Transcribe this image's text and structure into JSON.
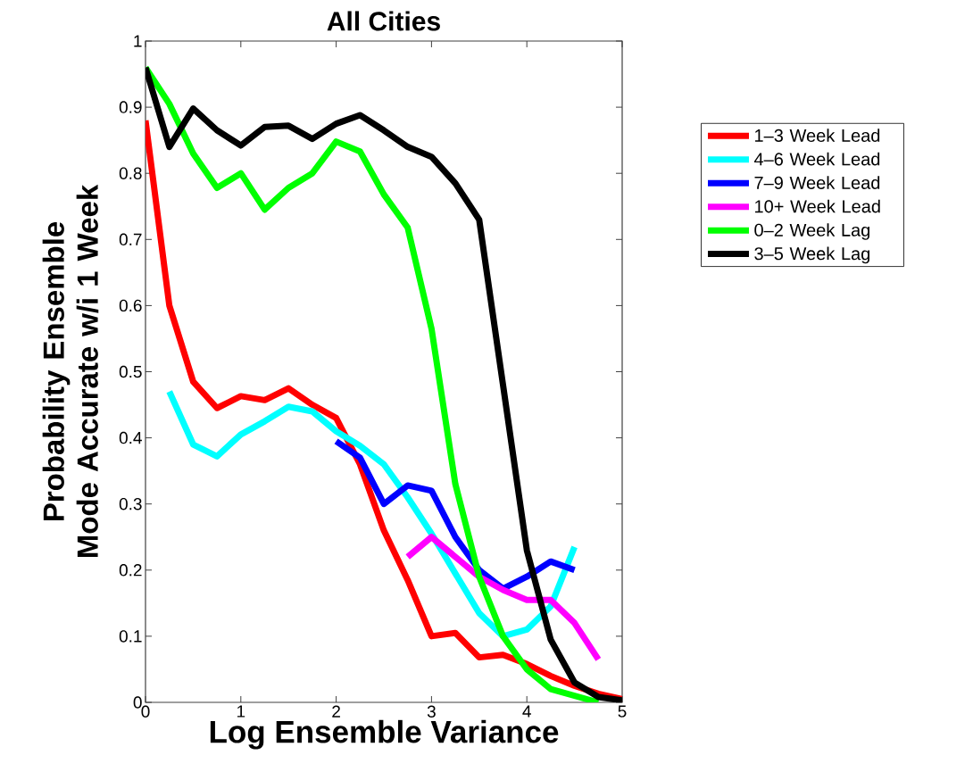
{
  "chart_data": {
    "type": "line",
    "title": "All Cities",
    "xlabel": "Log Ensemble Variance",
    "ylabel": "Probability Ensemble Mode Accurate w/i 1 Week",
    "xlim": [
      0,
      5
    ],
    "ylim": [
      0,
      1
    ],
    "xticks": [
      0,
      1,
      2,
      3,
      4,
      5
    ],
    "yticks": [
      0,
      0.1,
      0.2,
      0.3,
      0.4,
      0.5,
      0.6,
      0.7,
      0.8,
      0.9,
      1
    ],
    "grid": false,
    "legend": "right",
    "line_style": "solid",
    "series": [
      {
        "name": "1–3 Week Lead",
        "color": "#ff0000",
        "x": [
          0,
          0.25,
          0.5,
          0.75,
          1,
          1.25,
          1.5,
          1.75,
          2,
          2.25,
          2.5,
          2.75,
          3,
          3.25,
          3.5,
          3.75,
          4,
          4.25,
          4.5,
          4.75,
          5
        ],
        "values": [
          0.88,
          0.6,
          0.485,
          0.445,
          0.463,
          0.457,
          0.475,
          0.45,
          0.43,
          0.36,
          0.26,
          0.185,
          0.1,
          0.105,
          0.068,
          0.072,
          0.058,
          0.04,
          0.025,
          0.013,
          0.005
        ]
      },
      {
        "name": "4–6 Week Lead",
        "color": "#00ffff",
        "x": [
          0.25,
          0.5,
          0.75,
          1,
          1.25,
          1.5,
          1.75,
          2,
          2.25,
          2.5,
          2.75,
          3,
          3.25,
          3.5,
          3.75,
          4,
          4.25,
          4.5
        ],
        "values": [
          0.47,
          0.39,
          0.372,
          0.405,
          0.425,
          0.447,
          0.44,
          0.41,
          0.388,
          0.36,
          0.31,
          0.255,
          0.195,
          0.135,
          0.1,
          0.11,
          0.145,
          0.235
        ]
      },
      {
        "name": "7–9 Week Lead",
        "color": "#0000ff",
        "x": [
          2,
          2.25,
          2.5,
          2.75,
          3,
          3.25,
          3.5,
          3.75,
          4,
          4.25,
          4.5
        ],
        "values": [
          0.395,
          0.37,
          0.3,
          0.328,
          0.32,
          0.25,
          0.2,
          0.172,
          0.19,
          0.213,
          0.2
        ]
      },
      {
        "name": "10+ Week Lead",
        "color": "#ff00ff",
        "x": [
          2.75,
          3,
          3.25,
          3.5,
          3.75,
          4,
          4.25,
          4.5,
          4.75
        ],
        "values": [
          0.22,
          0.25,
          0.22,
          0.19,
          0.17,
          0.155,
          0.155,
          0.12,
          0.065
        ]
      },
      {
        "name": "0–2 Week Lag",
        "color": "#00ff00",
        "x": [
          0,
          0.25,
          0.5,
          0.75,
          1,
          1.25,
          1.5,
          1.75,
          2,
          2.25,
          2.5,
          2.75,
          3,
          3.25,
          3.5,
          3.75,
          4,
          4.25,
          4.5,
          4.75
        ],
        "values": [
          0.96,
          0.905,
          0.83,
          0.778,
          0.8,
          0.745,
          0.778,
          0.8,
          0.848,
          0.833,
          0.768,
          0.718,
          0.565,
          0.33,
          0.19,
          0.1,
          0.05,
          0.02,
          0.01,
          0.0
        ]
      },
      {
        "name": "3–5 Week Lag",
        "color": "#000000",
        "x": [
          0,
          0.25,
          0.5,
          0.75,
          1,
          1.25,
          1.5,
          1.75,
          2,
          2.25,
          2.5,
          2.75,
          3,
          3.25,
          3.5,
          3.75,
          4,
          4.25,
          4.5,
          4.75,
          5
        ],
        "values": [
          0.96,
          0.84,
          0.898,
          0.865,
          0.842,
          0.87,
          0.872,
          0.852,
          0.875,
          0.888,
          0.865,
          0.84,
          0.825,
          0.785,
          0.73,
          0.48,
          0.23,
          0.095,
          0.03,
          0.008,
          0.003
        ]
      }
    ]
  }
}
